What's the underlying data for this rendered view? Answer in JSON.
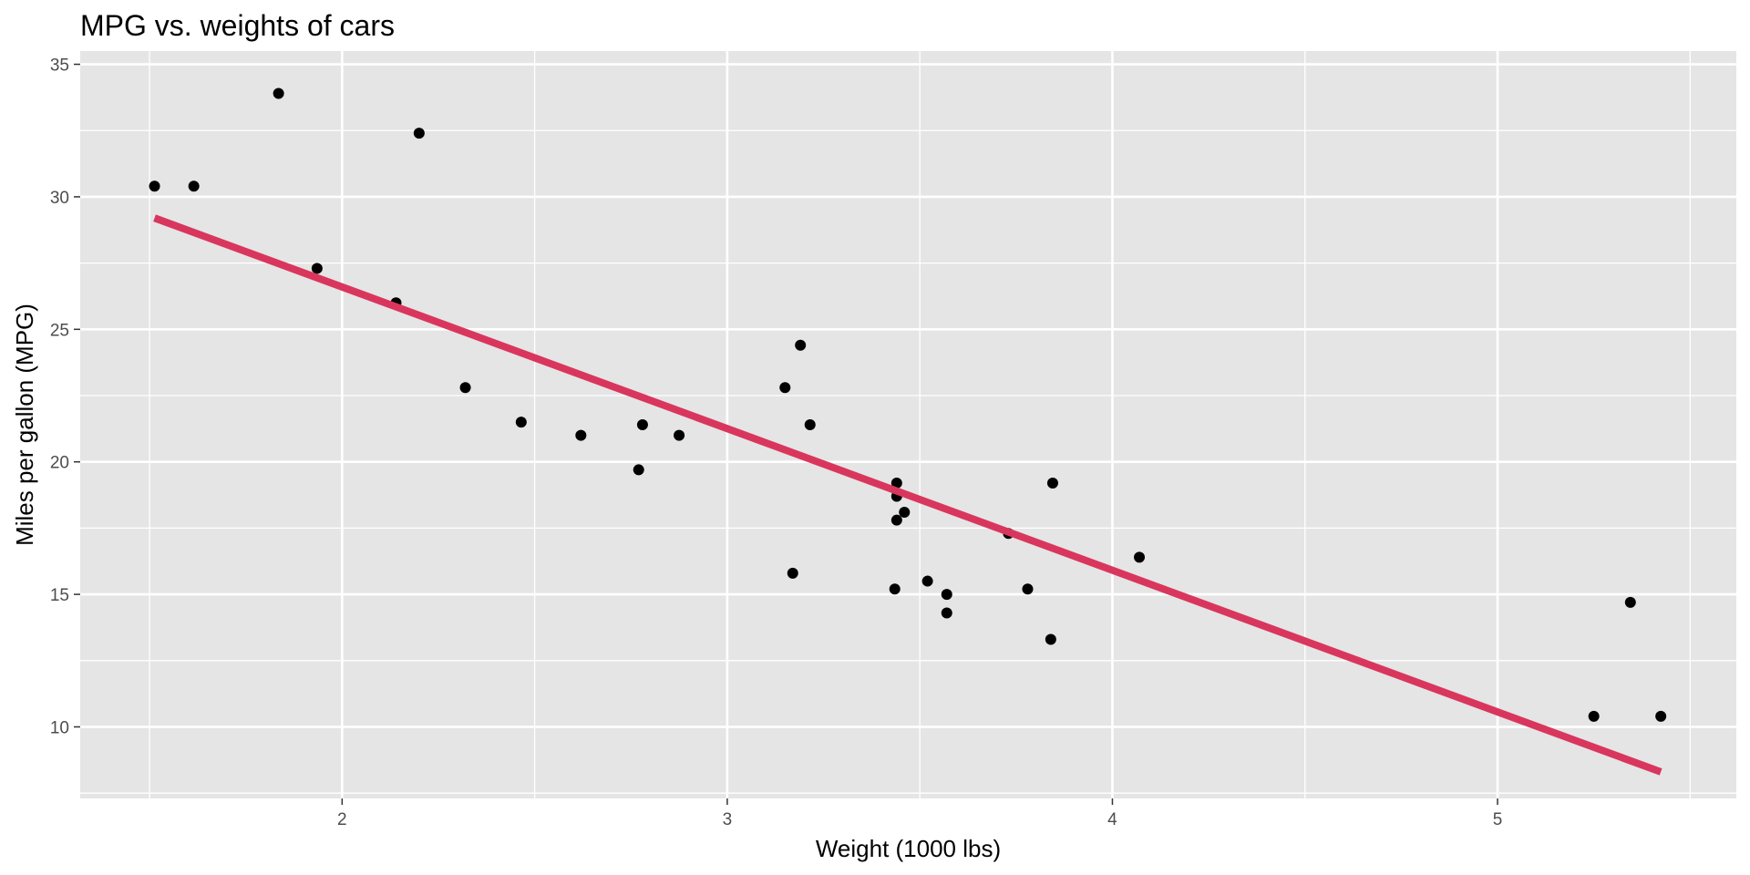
{
  "chart_data": {
    "type": "scatter",
    "title": "MPG vs. weights of cars",
    "xlabel": "Weight (1000 lbs)",
    "ylabel": "Miles per gallon (MPG)",
    "xlim": [
      1.32,
      5.62
    ],
    "ylim": [
      7.3,
      35.5
    ],
    "x_ticks": [
      2,
      3,
      4,
      5
    ],
    "y_ticks": [
      10,
      15,
      20,
      25,
      30,
      35
    ],
    "grid": true,
    "legend": "none",
    "colors": {
      "panel_bg": "#e5e5e5",
      "grid": "#ffffff",
      "point": "#000000",
      "trend_line": "#d9365e",
      "tick_text": "#4d4d4d"
    },
    "points": [
      {
        "x": 2.62,
        "y": 21.0
      },
      {
        "x": 2.875,
        "y": 21.0
      },
      {
        "x": 2.32,
        "y": 22.8
      },
      {
        "x": 3.215,
        "y": 21.4
      },
      {
        "x": 3.44,
        "y": 18.7
      },
      {
        "x": 3.46,
        "y": 18.1
      },
      {
        "x": 3.57,
        "y": 14.3
      },
      {
        "x": 3.19,
        "y": 24.4
      },
      {
        "x": 3.15,
        "y": 22.8
      },
      {
        "x": 3.44,
        "y": 19.2
      },
      {
        "x": 3.44,
        "y": 17.8
      },
      {
        "x": 4.07,
        "y": 16.4
      },
      {
        "x": 3.73,
        "y": 17.3
      },
      {
        "x": 3.78,
        "y": 15.2
      },
      {
        "x": 5.25,
        "y": 10.4
      },
      {
        "x": 5.424,
        "y": 10.4
      },
      {
        "x": 5.345,
        "y": 14.7
      },
      {
        "x": 2.2,
        "y": 32.4
      },
      {
        "x": 1.615,
        "y": 30.4
      },
      {
        "x": 1.835,
        "y": 33.9
      },
      {
        "x": 2.465,
        "y": 21.5
      },
      {
        "x": 3.52,
        "y": 15.5
      },
      {
        "x": 3.435,
        "y": 15.2
      },
      {
        "x": 3.84,
        "y": 13.3
      },
      {
        "x": 3.845,
        "y": 19.2
      },
      {
        "x": 1.935,
        "y": 27.3
      },
      {
        "x": 2.14,
        "y": 26.0
      },
      {
        "x": 1.513,
        "y": 30.4
      },
      {
        "x": 3.17,
        "y": 15.8
      },
      {
        "x": 2.77,
        "y": 19.7
      },
      {
        "x": 3.57,
        "y": 15.0
      },
      {
        "x": 2.78,
        "y": 21.4
      }
    ],
    "trend_line": {
      "x_start": 1.513,
      "y_start": 29.2,
      "x_end": 5.424,
      "y_end": 8.3
    }
  }
}
